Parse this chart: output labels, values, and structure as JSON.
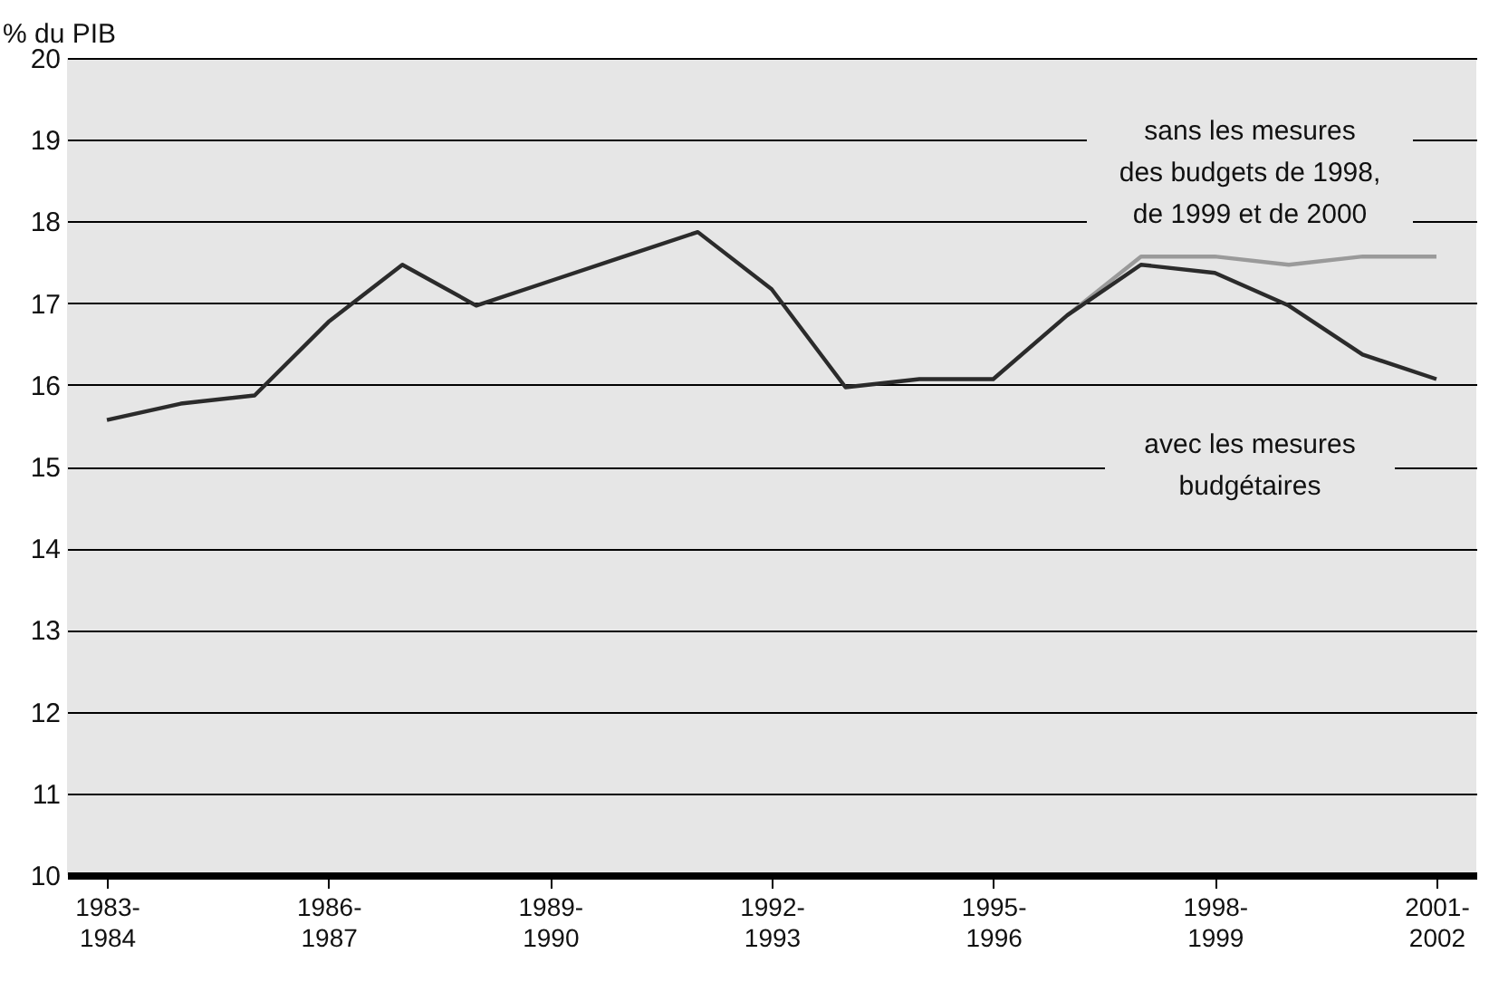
{
  "chart_data": {
    "type": "line",
    "ylabel": "% du PIB",
    "categories": [
      "1983-\n1984",
      null,
      null,
      "1986-\n1987",
      null,
      null,
      "1989-\n1990",
      null,
      null,
      "1992-\n1993",
      null,
      null,
      "1995-\n1996",
      null,
      null,
      "1998-\n1999",
      null,
      null,
      "2001-\n2002"
    ],
    "ylim": [
      10,
      20
    ],
    "yticks": [
      10,
      11,
      12,
      13,
      14,
      15,
      16,
      17,
      18,
      19,
      20
    ],
    "grid": "y",
    "legend": false,
    "series": [
      {
        "name": "sans les mesures\ndes budgets de 1998,\nde 1999 et de 2000",
        "color": "#9a9a9a",
        "values": [
          null,
          null,
          null,
          null,
          null,
          null,
          null,
          null,
          null,
          null,
          null,
          null,
          null,
          16.85,
          17.57,
          17.57,
          17.47,
          17.57,
          17.57
        ]
      },
      {
        "name": "avec les mesures\nbudgétaires",
        "color": "#2b2b2b",
        "values": [
          15.57,
          15.77,
          15.87,
          16.77,
          17.47,
          16.97,
          17.27,
          17.57,
          17.87,
          17.17,
          15.97,
          16.07,
          16.07,
          16.85,
          17.47,
          17.37,
          16.97,
          16.37,
          16.07
        ]
      }
    ]
  }
}
